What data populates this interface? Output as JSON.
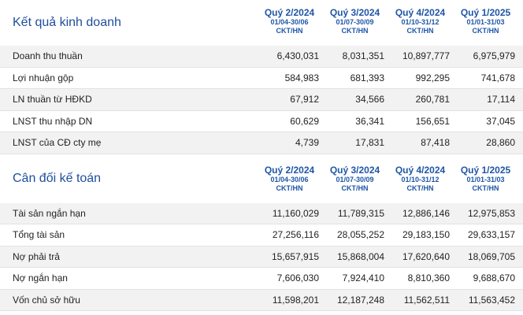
{
  "periods": [
    {
      "name": "Quý 2/2024",
      "range": "01/04-30/06",
      "unit": "CKT/HN"
    },
    {
      "name": "Quý 3/2024",
      "range": "01/07-30/09",
      "unit": "CKT/HN"
    },
    {
      "name": "Quý 4/2024",
      "range": "01/10-31/12",
      "unit": "CKT/HN"
    },
    {
      "name": "Quý 1/2025",
      "range": "01/01-31/03",
      "unit": "CKT/HN"
    }
  ],
  "business_results": {
    "title": "Kết quả kinh doanh",
    "rows": [
      {
        "label": "Doanh thu thuần",
        "values": [
          "6,430,031",
          "8,031,351",
          "10,897,777",
          "6,975,979"
        ]
      },
      {
        "label": "Lợi nhuận gộp",
        "values": [
          "584,983",
          "681,393",
          "992,295",
          "741,678"
        ]
      },
      {
        "label": "LN thuần từ HĐKD",
        "values": [
          "67,912",
          "34,566",
          "260,781",
          "17,114"
        ]
      },
      {
        "label": "LNST thu nhập DN",
        "values": [
          "60,629",
          "36,341",
          "156,651",
          "37,045"
        ]
      },
      {
        "label": "LNST của CĐ cty mẹ",
        "values": [
          "4,739",
          "17,831",
          "87,418",
          "28,860"
        ]
      }
    ]
  },
  "balance_sheet": {
    "title": "Cân đối kế toán",
    "rows": [
      {
        "label": "Tài sản ngắn hạn",
        "values": [
          "11,160,029",
          "11,789,315",
          "12,886,146",
          "12,975,853"
        ]
      },
      {
        "label": "Tổng tài sản",
        "values": [
          "27,256,116",
          "28,055,252",
          "29,183,150",
          "29,633,157"
        ]
      },
      {
        "label": "Nợ phải trả",
        "values": [
          "15,657,915",
          "15,868,004",
          "17,620,640",
          "18,069,705"
        ]
      },
      {
        "label": "Nợ ngắn hạn",
        "values": [
          "7,606,030",
          "7,924,410",
          "8,810,360",
          "9,688,670"
        ]
      },
      {
        "label": "Vốn chủ sở hữu",
        "values": [
          "11,598,201",
          "12,187,248",
          "11,562,511",
          "11,563,452"
        ]
      }
    ]
  }
}
